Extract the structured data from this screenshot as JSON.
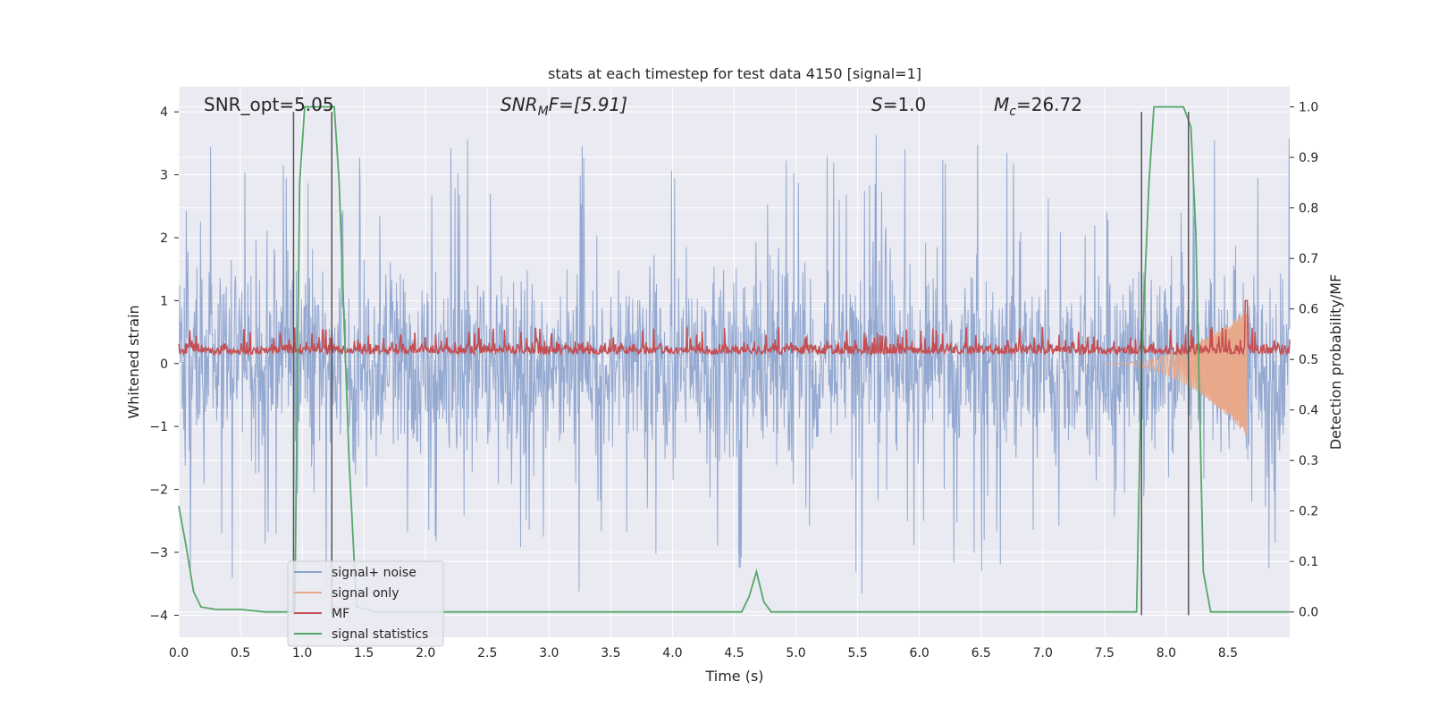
{
  "chart_data": {
    "type": "line",
    "title": "stats at each timestep for test data 4150 [signal=1]",
    "xlabel": "Time (s)",
    "ylabel_left": "Whitened strain",
    "ylabel_right": "Detection probability/MF",
    "xlim": [
      0.0,
      9.0
    ],
    "ylim_left": [
      -4.35,
      4.4
    ],
    "ylim_right": [
      -0.05,
      1.04
    ],
    "x_ticks": [
      "0.0",
      "0.5",
      "1.0",
      "1.5",
      "2.0",
      "2.5",
      "3.0",
      "3.5",
      "4.0",
      "4.5",
      "5.0",
      "5.5",
      "6.0",
      "6.5",
      "7.0",
      "7.5",
      "8.0",
      "8.5"
    ],
    "y_ticks_left": [
      "4",
      "3",
      "2",
      "1",
      "0",
      "−1",
      "−2",
      "−3",
      "−4"
    ],
    "y_ticks_right": [
      "1.0",
      "0.9",
      "0.8",
      "0.7",
      "0.6",
      "0.5",
      "0.4",
      "0.3",
      "0.2",
      "0.1",
      "0.0"
    ],
    "grid": true,
    "legend_position": "lower-left",
    "annotations": {
      "snr_opt": "SNR_opt=5.05",
      "snr_mf_base": "SNR",
      "snr_mf_sub": "M",
      "snr_mf_rest": "F=[5.91]",
      "s_label": "S",
      "s_value": "=1.0",
      "mc_base": "M",
      "mc_sub": "c",
      "mc_value": "=26.72"
    },
    "series": [
      {
        "name": "signal+ noise",
        "color": "#8fa5cf",
        "style": "dense-noise",
        "amplitude_core": 1.6,
        "amplitude_spike_max": 3.7
      },
      {
        "name": "signal only",
        "color": "#e8a98a",
        "style": "chirp",
        "start": 7.5,
        "end": 8.65,
        "amplitude_max": 1.0
      },
      {
        "name": "MF",
        "color": "#c44e52",
        "style": "noise-band",
        "center": 0.2,
        "amplitude": 0.25,
        "peak_x": 8.65,
        "peak_y": 1.0
      },
      {
        "name": "signal statistics",
        "color": "#55a868",
        "x": [
          0.0,
          0.06,
          0.12,
          0.18,
          0.3,
          0.5,
          0.7,
          0.9,
          0.94,
          0.98,
          1.02,
          1.1,
          1.2,
          1.26,
          1.3,
          1.38,
          1.44,
          1.6,
          2.0,
          3.0,
          4.0,
          4.5,
          4.56,
          4.62,
          4.68,
          4.74,
          4.8,
          5.0,
          6.0,
          7.0,
          7.7,
          7.76,
          7.8,
          7.86,
          7.9,
          8.0,
          8.1,
          8.14,
          8.2,
          8.24,
          8.3,
          8.36,
          8.5,
          9.0
        ],
        "y": [
          0.21,
          0.13,
          0.04,
          0.01,
          0.005,
          0.005,
          0.0,
          0.0,
          0.0,
          0.85,
          1.0,
          1.0,
          1.0,
          1.0,
          0.85,
          0.3,
          0.01,
          0.0,
          0.0,
          0.0,
          0.0,
          0.0,
          0.0,
          0.03,
          0.08,
          0.02,
          0.0,
          0.0,
          0.0,
          0.0,
          0.0,
          0.0,
          0.5,
          0.85,
          1.0,
          1.0,
          1.0,
          1.0,
          0.96,
          0.75,
          0.08,
          0.0,
          0.0,
          0.0
        ]
      }
    ],
    "vlines": [
      0.93,
      1.24,
      7.8,
      8.18
    ],
    "vline_color": "#555555"
  }
}
